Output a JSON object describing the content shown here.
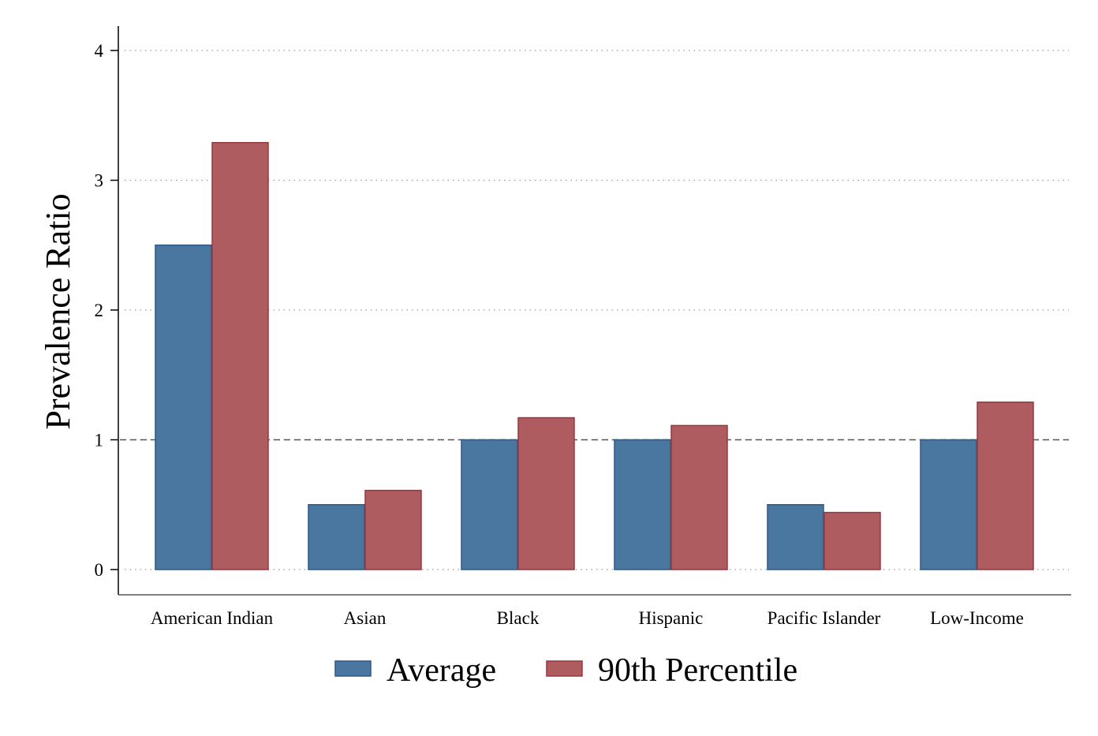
{
  "chart_data": {
    "type": "bar",
    "title": "",
    "xlabel": "",
    "ylabel": "Prevalence Ratio",
    "categories": [
      "American Indian",
      "Asian",
      "Black",
      "Hispanic",
      "Pacific Islander",
      "Low-Income"
    ],
    "series": [
      {
        "name": "Average",
        "values": [
          2.5,
          0.5,
          1.0,
          1.0,
          0.5,
          1.0
        ],
        "color": "#4a77a0"
      },
      {
        "name": "90th Percentile",
        "values": [
          3.29,
          0.61,
          1.17,
          1.11,
          0.44,
          1.29
        ],
        "color": "#ae5c60"
      }
    ],
    "ylim": [
      -0.2,
      4.2
    ],
    "yticks": [
      0,
      1,
      2,
      3,
      4
    ],
    "reference_line": 1,
    "grid": "dotted horizontal",
    "legend_position": "bottom"
  }
}
